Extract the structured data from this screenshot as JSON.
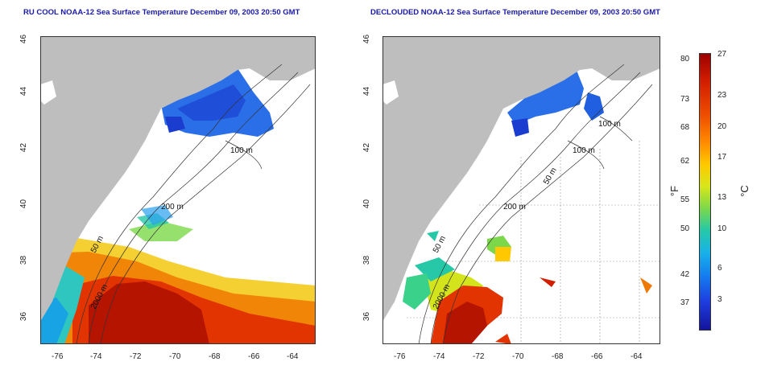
{
  "left_panel": {
    "title": "RU COOL NOAA-12 Sea Surface Temperature December 09, 2003 20:50 GMT",
    "y_ticks": [
      "46",
      "44",
      "42",
      "40",
      "38",
      "36"
    ],
    "x_ticks": [
      "-76",
      "-74",
      "-72",
      "-70",
      "-68",
      "-66",
      "-64"
    ],
    "contour_labels": [
      "100 m",
      "200 m",
      "50 m",
      "2000 m"
    ]
  },
  "right_panel": {
    "title": "DECLOUDED NOAA-12 Sea Surface Temperature December 09, 2003 20:50 GMT",
    "y_ticks": [
      "46",
      "44",
      "42",
      "40",
      "38",
      "36"
    ],
    "x_ticks": [
      "-76",
      "-74",
      "-72",
      "-70",
      "-68",
      "-66",
      "-64"
    ],
    "contour_labels": [
      "100 m",
      "100 m",
      "50 m",
      "200 m",
      "50 m",
      "2000 m"
    ]
  },
  "colorbar": {
    "fahrenheit_ticks": [
      "80",
      "73",
      "68",
      "62",
      "55",
      "50",
      "42",
      "37"
    ],
    "celsius_ticks": [
      "27",
      "23",
      "20",
      "17",
      "13",
      "10",
      "6",
      "3"
    ],
    "fahrenheit_unit": "°F",
    "celsius_unit": "°C"
  },
  "colors": {
    "land": "#bebebe",
    "title": "#1a1aa6",
    "warm": "#c81e00",
    "cold": "#1e50e0"
  }
}
